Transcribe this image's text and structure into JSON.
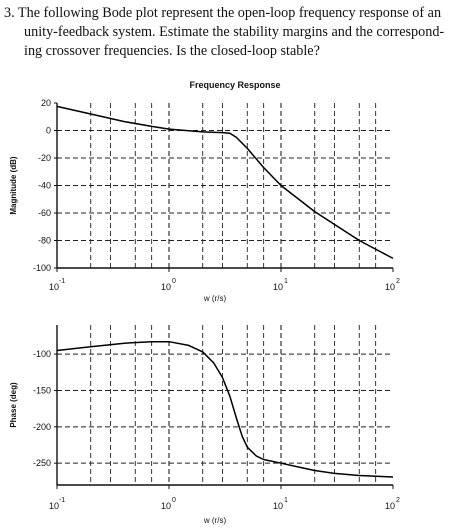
{
  "question": {
    "line1": "3.  The following Bode plot represent the open-loop frequency response of an",
    "line2": "unity-feedback system.  Estimate the stability margins and the correspond-",
    "line3": "ing crossover frequencies.  Is the closed-loop stable?"
  },
  "chart_data": [
    {
      "type": "line",
      "title": "Frequency Response",
      "xlabel": "w (r/s)",
      "ylabel": "Magnitude (dB)",
      "xscale": "log",
      "xlim": [
        0.1,
        100
      ],
      "ylim": [
        -100,
        20
      ],
      "xticks": [
        0.1,
        1,
        10,
        100
      ],
      "xtick_labels": [
        [
          "10",
          "-1"
        ],
        [
          "10",
          "0"
        ],
        [
          "10",
          "1"
        ],
        [
          "10",
          "2"
        ]
      ],
      "yticks": [
        -100,
        -80,
        -60,
        -40,
        -20,
        0,
        20
      ],
      "ytick_labels": [
        "-100",
        "-80",
        "-60",
        "-40",
        "-20",
        "0",
        "20"
      ],
      "grid": true,
      "series": [
        {
          "x": [
            0.1,
            0.2,
            0.4,
            0.7,
            1,
            2,
            3,
            3.5,
            4,
            5,
            7,
            10,
            20,
            50,
            100
          ],
          "y": [
            17.5,
            12,
            6.5,
            3,
            1,
            -1,
            -1.5,
            -2,
            -5,
            -13,
            -27,
            -40,
            -59,
            -80,
            -93
          ]
        }
      ]
    },
    {
      "type": "line",
      "title": "",
      "xlabel": "w (r/s)",
      "ylabel": "Phase (deg)",
      "xscale": "log",
      "xlim": [
        0.1,
        100
      ],
      "ylim": [
        -280,
        -60
      ],
      "xticks": [
        0.1,
        1,
        10,
        100
      ],
      "xtick_labels": [
        [
          "10",
          "-1"
        ],
        [
          "10",
          "0"
        ],
        [
          "10",
          "1"
        ],
        [
          "10",
          "2"
        ]
      ],
      "yticks": [
        -250,
        -200,
        -150,
        -100
      ],
      "ytick_labels": [
        "-250",
        "-200",
        "-150",
        "-100"
      ],
      "grid": true,
      "series": [
        {
          "x": [
            0.1,
            0.2,
            0.4,
            0.7,
            1,
            1.5,
            2,
            2.5,
            3,
            3.5,
            4,
            4.5,
            5,
            6,
            7,
            10,
            15,
            20,
            30,
            50,
            100
          ],
          "y": [
            -95,
            -90,
            -85,
            -83,
            -83,
            -88,
            -97,
            -112,
            -132,
            -158,
            -188,
            -213,
            -228,
            -240,
            -245,
            -250,
            -256,
            -260,
            -264,
            -267,
            -269
          ]
        }
      ]
    }
  ]
}
